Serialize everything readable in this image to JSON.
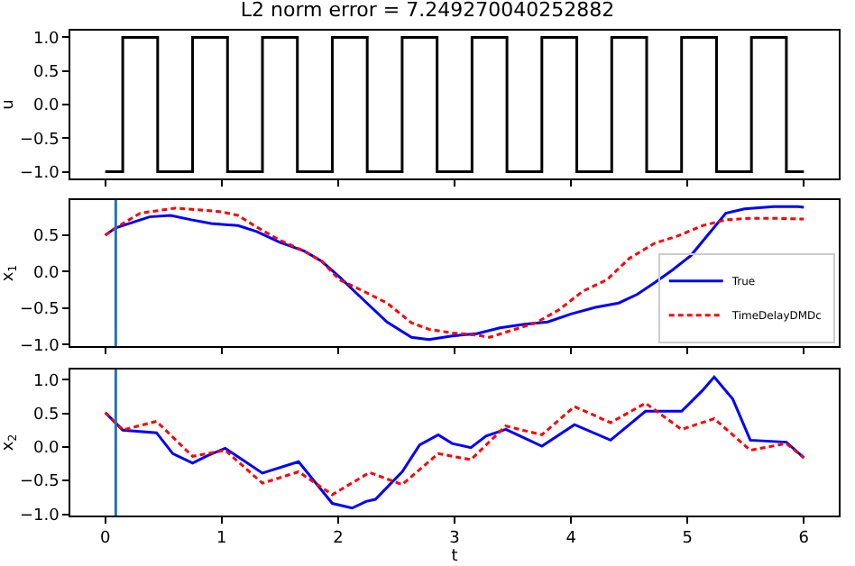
{
  "chart_data": [
    {
      "type": "step",
      "title": "L2 norm error = 7.249270040252882",
      "ylabel": "u",
      "tick_labels": "y",
      "xlim": [
        -0.3,
        6.3
      ],
      "xticks": [
        0,
        1,
        2,
        3,
        4,
        5,
        6
      ],
      "ylim": [
        -1.1,
        1.1
      ],
      "yticks": [
        {
          "value": -1,
          "label": "−1.0"
        },
        {
          "value": -0.5,
          "label": "−0.5"
        },
        {
          "value": 0,
          "label": "0.0"
        },
        {
          "value": 0.5,
          "label": "0.5"
        },
        {
          "value": 1,
          "label": "1.0"
        }
      ],
      "legend": false,
      "series": [
        {
          "color": "#000000",
          "x": [
            0,
            0.15,
            0.45,
            0.75,
            1.05,
            1.35,
            1.65,
            1.95,
            2.25,
            2.55,
            2.85,
            3.15,
            3.45,
            3.75,
            4.05,
            4.35,
            4.65,
            4.95,
            5.25,
            5.55,
            5.85,
            6
          ],
          "values": [
            -1,
            1,
            -1,
            1,
            -1,
            1,
            -1,
            1,
            -1,
            1,
            -1,
            1,
            -1,
            1,
            -1,
            1,
            -1,
            1,
            -1,
            1,
            -1,
            -1
          ]
        }
      ]
    },
    {
      "type": "line",
      "ylabel": "x$_{1}$",
      "tick_labels": "y",
      "xlim": [
        -0.3,
        6.3
      ],
      "xticks": [
        0,
        1,
        2,
        3,
        4,
        5,
        6
      ],
      "ylim": [
        -1.02,
        0.98
      ],
      "yticks": [
        {
          "value": -1,
          "label": "−1.0"
        },
        {
          "value": -0.5,
          "label": "−0.5"
        },
        {
          "value": 0,
          "label": "0.0"
        },
        {
          "value": 0.5,
          "label": "0.5"
        }
      ],
      "legend": "bottom right",
      "ref_lines": [
        {
          "axis": "x",
          "value": 0.09,
          "color": "#1f77b4"
        }
      ],
      "series": [
        {
          "name": "True",
          "color": "#0000ff",
          "line_style": "solid",
          "x": [
            0,
            0.09,
            0.38,
            0.56,
            0.74,
            0.91,
            1.14,
            1.3,
            1.5,
            1.71,
            1.86,
            2.01,
            2.22,
            2.42,
            2.63,
            2.78,
            2.98,
            3.19,
            3.39,
            3.6,
            3.8,
            4.0,
            4.21,
            4.41,
            4.57,
            4.72,
            4.87,
            5.03,
            5.18,
            5.33,
            5.49,
            5.74,
            5.95,
            6
          ],
          "values": [
            0.5,
            0.6,
            0.75,
            0.77,
            0.71,
            0.66,
            0.63,
            0.55,
            0.4,
            0.28,
            0.14,
            -0.07,
            -0.39,
            -0.69,
            -0.9,
            -0.93,
            -0.88,
            -0.85,
            -0.77,
            -0.72,
            -0.69,
            -0.58,
            -0.49,
            -0.43,
            -0.31,
            -0.15,
            0.02,
            0.22,
            0.51,
            0.8,
            0.86,
            0.89,
            0.89,
            0.88
          ]
        },
        {
          "name": "TimeDelayDMDc",
          "color": "#ff0000",
          "line_style": "dashed",
          "x": [
            0,
            0.09,
            0.3,
            0.6,
            0.77,
            1.0,
            1.14,
            1.3,
            1.5,
            1.71,
            1.86,
            2.01,
            2.22,
            2.42,
            2.63,
            2.78,
            2.98,
            3.19,
            3.3,
            3.5,
            3.7,
            3.9,
            4.1,
            4.31,
            4.5,
            4.72,
            4.92,
            5.13,
            5.33,
            5.54,
            5.74,
            6
          ],
          "values": [
            0.5,
            0.6,
            0.8,
            0.87,
            0.85,
            0.82,
            0.77,
            0.61,
            0.43,
            0.28,
            0.14,
            -0.11,
            -0.27,
            -0.43,
            -0.7,
            -0.79,
            -0.84,
            -0.87,
            -0.9,
            -0.8,
            -0.7,
            -0.52,
            -0.27,
            -0.11,
            0.18,
            0.39,
            0.49,
            0.63,
            0.71,
            0.73,
            0.73,
            0.72
          ]
        }
      ]
    },
    {
      "type": "line",
      "ylabel": "x$_{2}$",
      "xlabel": "t",
      "xlim": [
        -0.3,
        6.3
      ],
      "xticks": [
        0,
        1,
        2,
        3,
        4,
        5,
        6
      ],
      "ylim": [
        -1.02,
        1.15
      ],
      "yticks": [
        {
          "value": -1,
          "label": "−1.0"
        },
        {
          "value": -0.5,
          "label": "−0.5"
        },
        {
          "value": 0,
          "label": "0.0"
        },
        {
          "value": 0.5,
          "label": "0.5"
        },
        {
          "value": 1,
          "label": "1.0"
        }
      ],
      "legend": false,
      "ref_lines": [
        {
          "axis": "x",
          "value": 0.09,
          "color": "#1f77b4"
        }
      ],
      "series": [
        {
          "color": "#0000ff",
          "line_style": "solid",
          "x": [
            0,
            0.15,
            0.44,
            0.58,
            0.75,
            0.89,
            1.03,
            1.35,
            1.66,
            1.95,
            2.12,
            2.24,
            2.32,
            2.55,
            2.7,
            2.86,
            2.98,
            3.14,
            3.27,
            3.44,
            3.75,
            4.03,
            4.34,
            4.64,
            4.95,
            5.13,
            5.23,
            5.39,
            5.54,
            5.85,
            6
          ],
          "values": [
            0.51,
            0.25,
            0.21,
            -0.1,
            -0.24,
            -0.12,
            -0.02,
            -0.39,
            -0.22,
            -0.84,
            -0.91,
            -0.81,
            -0.78,
            -0.37,
            0.03,
            0.18,
            0.05,
            -0.01,
            0.16,
            0.26,
            0.01,
            0.33,
            0.1,
            0.53,
            0.53,
            0.84,
            1.04,
            0.71,
            0.1,
            0.07,
            -0.16
          ]
        },
        {
          "color": "#ff0000",
          "line_style": "dashed",
          "x": [
            0,
            0.15,
            0.44,
            0.75,
            1.03,
            1.35,
            1.66,
            1.95,
            2.27,
            2.55,
            2.86,
            3.14,
            3.44,
            3.75,
            4.03,
            4.34,
            4.64,
            4.95,
            5.23,
            5.54,
            5.85,
            6
          ],
          "values": [
            0.51,
            0.25,
            0.38,
            -0.14,
            -0.05,
            -0.54,
            -0.37,
            -0.71,
            -0.38,
            -0.56,
            -0.1,
            -0.19,
            0.31,
            0.18,
            0.6,
            0.36,
            0.65,
            0.26,
            0.42,
            -0.05,
            0.05,
            -0.16
          ]
        }
      ]
    }
  ]
}
